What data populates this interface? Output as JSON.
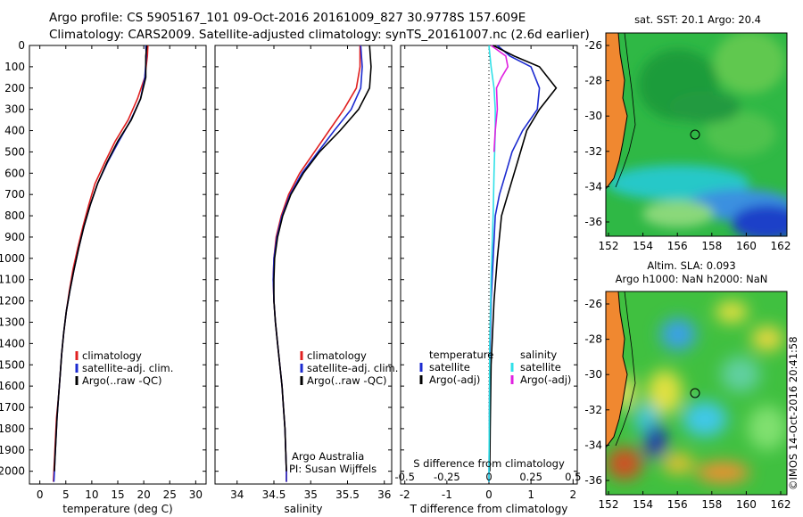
{
  "header": {
    "line1": "Argo profile: CS 5905167_101 09-Oct-2016 20161009_827 30.9778S 157.609E",
    "line2": "Climatology: CARS2009. Satellite-adjusted climatology: synTS_20161007.nc (2.6d earlier)"
  },
  "colors": {
    "climatology": "#e02020",
    "satellite": "#1c2bd0",
    "argo": "#000000",
    "satellite_s": "#30e0e8",
    "argo_s": "#e020e0"
  },
  "depth_axis": {
    "ticks": [
      "0",
      "100",
      "200",
      "300",
      "400",
      "500",
      "600",
      "700",
      "800",
      "900",
      "1000",
      "1100",
      "1200",
      "1300",
      "1400",
      "1500",
      "1600",
      "1700",
      "1800",
      "1900",
      "2000"
    ]
  },
  "chart_data": [
    {
      "type": "line",
      "id": "temperature",
      "xlabel": "temperature (deg C)",
      "xlim": [
        -2,
        32
      ],
      "ylim": [
        0,
        2060
      ],
      "xticks": [
        0,
        5,
        10,
        15,
        20,
        25,
        30
      ],
      "xtick_labels": [
        "0",
        "5",
        "10",
        "15",
        "20",
        "25",
        "30"
      ],
      "legend": [
        "climatology",
        "satellite-adj. clim.",
        "Argo(..raw -QC)"
      ],
      "series": [
        {
          "name": "climatology",
          "x": [
            20.8,
            20.7,
            20.2,
            18.8,
            17.0,
            14.5,
            12.5,
            10.6,
            9.4,
            8.3,
            7.3,
            6.4,
            5.7,
            5.1,
            4.6,
            4.2,
            3.9,
            3.6,
            3.2,
            3.0,
            2.8,
            2.7,
            2.6
          ],
          "y": [
            0,
            50,
            150,
            250,
            350,
            450,
            550,
            650,
            750,
            850,
            950,
            1050,
            1150,
            1250,
            1350,
            1450,
            1550,
            1650,
            1750,
            1850,
            1950,
            2000,
            2050
          ]
        },
        {
          "name": "satellite-adj. clim.",
          "x": [
            20.4,
            20.5,
            20.2,
            19.4,
            17.5,
            15.2,
            13.0,
            11.1,
            9.7,
            8.5,
            7.5,
            6.6,
            5.8,
            5.1,
            4.6,
            4.2,
            3.9,
            3.6,
            3.3,
            3.1,
            2.9,
            2.8,
            2.7
          ],
          "y": [
            0,
            50,
            150,
            250,
            350,
            450,
            550,
            650,
            750,
            850,
            950,
            1050,
            1150,
            1250,
            1350,
            1450,
            1550,
            1650,
            1750,
            1850,
            1950,
            2000,
            2050
          ]
        },
        {
          "name": "Argo(..raw -QC)",
          "x": [
            20.6,
            20.4,
            20.4,
            19.4,
            17.6,
            15.0,
            12.9,
            11.1,
            9.7,
            8.5,
            7.5,
            6.6,
            5.8,
            5.1,
            4.6,
            4.2,
            3.9,
            3.6,
            3.3,
            3.1,
            2.9,
            2.8
          ],
          "y": [
            0,
            50,
            150,
            250,
            350,
            450,
            550,
            650,
            750,
            850,
            950,
            1050,
            1150,
            1250,
            1350,
            1450,
            1550,
            1650,
            1750,
            1850,
            1950,
            2000
          ]
        }
      ]
    },
    {
      "type": "line",
      "id": "salinity",
      "xlabel": "salinity",
      "xlim": [
        33.7,
        36.1
      ],
      "ylim": [
        0,
        2060
      ],
      "xticks": [
        34,
        34.5,
        35,
        35.5,
        36
      ],
      "xtick_labels": [
        "34",
        "34.5",
        "35",
        "35.5",
        "36"
      ],
      "legend": [
        "climatology",
        "satellite-adj. clim.",
        "Argo(..raw -QC)"
      ],
      "note": [
        "Argo Australia",
        "PI: Susan Wijffels"
      ],
      "series": [
        {
          "name": "climatology",
          "x": [
            35.67,
            35.67,
            35.62,
            35.45,
            35.25,
            35.05,
            34.85,
            34.7,
            34.6,
            34.53,
            34.5,
            34.49,
            34.5,
            34.52,
            34.55,
            34.58,
            34.61,
            34.63,
            34.65,
            34.66,
            34.67,
            34.67
          ],
          "y": [
            0,
            100,
            200,
            300,
            400,
            500,
            600,
            700,
            800,
            900,
            1000,
            1100,
            1200,
            1300,
            1400,
            1500,
            1600,
            1700,
            1800,
            1900,
            2000,
            2050
          ]
        },
        {
          "name": "satellite-adj. clim.",
          "x": [
            35.68,
            35.7,
            35.68,
            35.55,
            35.32,
            35.1,
            34.88,
            34.72,
            34.61,
            34.54,
            34.5,
            34.49,
            34.5,
            34.52,
            34.55,
            34.58,
            34.61,
            34.63,
            34.65,
            34.66,
            34.67,
            34.67
          ],
          "y": [
            0,
            100,
            200,
            300,
            400,
            500,
            600,
            700,
            800,
            900,
            1000,
            1100,
            1200,
            1300,
            1400,
            1500,
            1600,
            1700,
            1800,
            1900,
            2000,
            2050
          ]
        },
        {
          "name": "Argo(..raw -QC)",
          "x": [
            35.8,
            35.82,
            35.8,
            35.65,
            35.4,
            35.12,
            34.9,
            34.73,
            34.62,
            34.55,
            34.51,
            34.5,
            34.5,
            34.52,
            34.55,
            34.58,
            34.61,
            34.63,
            34.65,
            34.66,
            34.67
          ],
          "y": [
            0,
            100,
            200,
            300,
            400,
            500,
            600,
            700,
            800,
            900,
            1000,
            1100,
            1200,
            1300,
            1400,
            1500,
            1600,
            1700,
            1800,
            1900,
            2000
          ]
        }
      ]
    },
    {
      "type": "line",
      "id": "differences",
      "xlabel_bottom": "T difference from climatology",
      "xlabel_top": "S difference from climatology",
      "xlim": [
        -2.1,
        2.1
      ],
      "ylim": [
        0,
        2060
      ],
      "xticks_t": [
        -2,
        -1,
        0,
        1,
        2
      ],
      "xtick_labels_t": [
        "-2",
        "-1",
        "0",
        "1",
        "2"
      ],
      "xticks_s": [
        -0.5,
        -0.25,
        0,
        0.25,
        0.5
      ],
      "xtick_labels_s": [
        "-0.5",
        "-0.25",
        "0",
        "0.25",
        "0.5"
      ],
      "legend_temperature_title": "temperature",
      "legend_salinity_title": "salinity",
      "legend_temperature": [
        "satellite",
        "Argo(-adj)"
      ],
      "legend_salinity": [
        "satellite",
        "Argo(-adj)"
      ],
      "series": [
        {
          "name": "temperature satellite",
          "color": "#1c2bd0",
          "x": [
            0.2,
            0.5,
            1.0,
            1.2,
            1.15,
            0.8,
            0.55,
            0.4,
            0.25,
            0.15,
            0.1,
            0.05,
            0.02,
            0.01,
            0.0
          ],
          "y": [
            0,
            50,
            100,
            200,
            300,
            400,
            500,
            600,
            700,
            800,
            1000,
            1200,
            1500,
            1800,
            2050
          ]
        },
        {
          "name": "temperature Argo(-adj)",
          "color": "#000000",
          "x": [
            0.1,
            0.6,
            1.2,
            1.6,
            1.2,
            0.9,
            0.75,
            0.6,
            0.45,
            0.3,
            0.2,
            0.12,
            0.05,
            0.03,
            0.02
          ],
          "y": [
            0,
            50,
            100,
            200,
            300,
            400,
            500,
            600,
            700,
            800,
            1000,
            1200,
            1500,
            1800,
            2000
          ]
        },
        {
          "name": "salinity satellite",
          "color": "#30e0e8",
          "x": [
            0.0,
            0.05,
            0.12,
            0.15,
            0.15,
            0.12,
            0.1,
            0.05,
            0.02,
            0.01,
            0.0
          ],
          "y": [
            0,
            100,
            200,
            300,
            400,
            600,
            800,
            1100,
            1400,
            1700,
            2050
          ]
        },
        {
          "name": "salinity Argo(-adj)",
          "color": "#e020e0",
          "x": [
            0.05,
            0.4,
            0.45,
            0.3,
            0.18,
            0.2,
            0.15,
            0.12
          ],
          "y": [
            0,
            50,
            100,
            150,
            200,
            300,
            400,
            500
          ]
        }
      ]
    }
  ],
  "maps": {
    "sst": {
      "title": "sat. SST: 20.1  Argo: 20.4",
      "xticks": [
        "152",
        "154",
        "156",
        "158",
        "160",
        "162"
      ],
      "yticks": [
        "-26",
        "-28",
        "-30",
        "-32",
        "-34",
        "-36"
      ]
    },
    "sla": {
      "title1": "Altim. SLA: 0.093",
      "title2": "Argo h1000: NaN h2000: NaN",
      "xticks": [
        "152",
        "154",
        "156",
        "158",
        "160",
        "162"
      ],
      "yticks": [
        "-26",
        "-28",
        "-30",
        "-32",
        "-34",
        "-36"
      ]
    }
  },
  "credit": "©IMOS 14-Oct-2016 20:41:58"
}
